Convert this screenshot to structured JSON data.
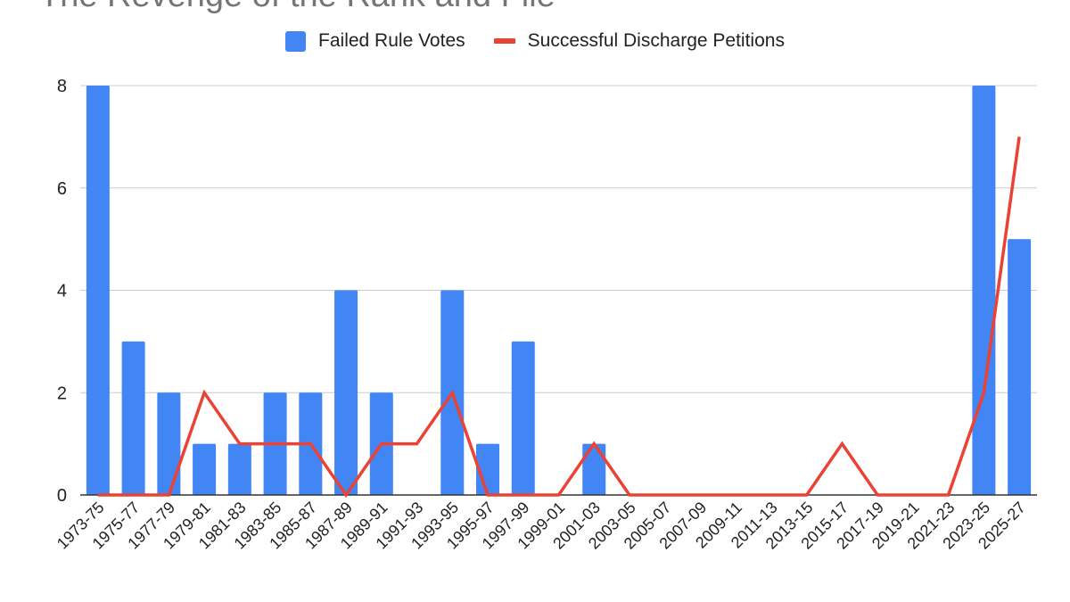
{
  "chart_data": {
    "type": "bar",
    "title": "The Revenge of the Rank and File",
    "xlabel": "",
    "ylabel": "",
    "ylim": [
      0,
      8
    ],
    "yticks": [
      0,
      2,
      4,
      6,
      8
    ],
    "grid": true,
    "legend": "top",
    "categories": [
      "1973-75",
      "1975-77",
      "1977-79",
      "1979-81",
      "1981-83",
      "1983-85",
      "1985-87",
      "1987-89",
      "1989-91",
      "1991-93",
      "1993-95",
      "1995-97",
      "1997-99",
      "1999-01",
      "2001-03",
      "2003-05",
      "2005-07",
      "2007-09",
      "2009-11",
      "2011-13",
      "2013-15",
      "2015-17",
      "2017-19",
      "2019-21",
      "2021-23",
      "2023-25",
      "2025-27"
    ],
    "series": [
      {
        "name": "Failed Rule Votes",
        "kind": "bar",
        "color": "#4285F4",
        "values": [
          8,
          3,
          2,
          1,
          1,
          2,
          2,
          4,
          2,
          0,
          4,
          1,
          3,
          0,
          1,
          0,
          0,
          0,
          0,
          0,
          0,
          0,
          0,
          0,
          0,
          8,
          5
        ]
      },
      {
        "name": "Successful Discharge Petitions",
        "kind": "line",
        "color": "#EA4335",
        "values": [
          0,
          0,
          0,
          2,
          1,
          1,
          1,
          0,
          1,
          1,
          2,
          0,
          0,
          0,
          1,
          0,
          0,
          0,
          0,
          0,
          0,
          1,
          0,
          0,
          0,
          2,
          7
        ]
      }
    ]
  }
}
